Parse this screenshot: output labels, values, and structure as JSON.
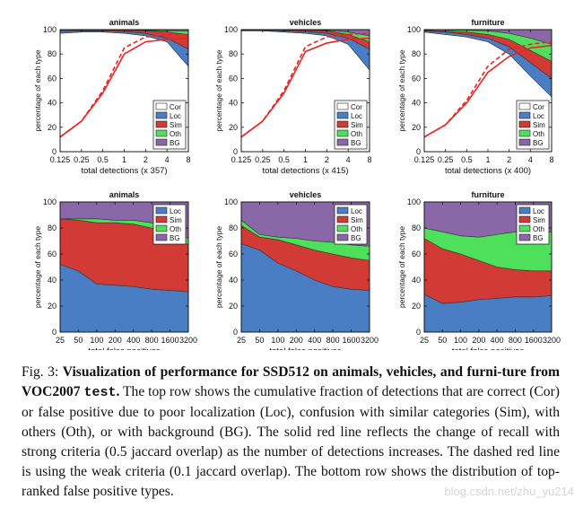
{
  "colors": {
    "Cor": "#ffffff",
    "Loc": "#4a7ec4",
    "Sim": "#d13a35",
    "Oth": "#4ee05a",
    "BG": "#8a68a8",
    "recall": "#ee2222"
  },
  "chart_data": [
    {
      "type": "area",
      "title": "animals",
      "xlabel": "total detections (x 357)",
      "ylabel": "percentage of each type",
      "xticks": [
        "0.125",
        "0.25",
        "0.5",
        "1",
        "2",
        "4",
        "8"
      ],
      "yticks": [
        "0",
        "20",
        "40",
        "60",
        "80",
        "100"
      ],
      "ylim": [
        0,
        100
      ],
      "x_scale": "log2",
      "legend": [
        "Cor",
        "Loc",
        "Sim",
        "Oth",
        "BG"
      ],
      "legend_position": "bottom-right",
      "x": [
        0.125,
        0.25,
        0.5,
        1,
        2,
        4,
        8
      ],
      "series": [
        {
          "name": "Cor",
          "values": [
            97,
            98,
            98,
            97,
            95,
            90,
            70
          ]
        },
        {
          "name": "Loc",
          "values": [
            99,
            99,
            99,
            98.5,
            97,
            93,
            84
          ]
        },
        {
          "name": "Sim",
          "values": [
            100,
            99.6,
            99.5,
            99.4,
            99,
            98,
            96
          ]
        },
        {
          "name": "Oth",
          "values": [
            100,
            100,
            100,
            99.8,
            99.5,
            99,
            99
          ]
        },
        {
          "name": "BG",
          "values": [
            100,
            100,
            100,
            100,
            100,
            100,
            100
          ]
        }
      ],
      "recall_strong": [
        12,
        25,
        48,
        80,
        90,
        92,
        93
      ],
      "recall_weak": [
        12,
        25,
        50,
        85,
        94,
        96,
        96
      ]
    },
    {
      "type": "area",
      "title": "vehicles",
      "xlabel": "total detections (x 415)",
      "ylabel": "percentage of each type",
      "xticks": [
        "0.125",
        "0.25",
        "0.5",
        "1",
        "2",
        "4",
        "8"
      ],
      "yticks": [
        "0",
        "20",
        "40",
        "60",
        "80",
        "100"
      ],
      "ylim": [
        0,
        100
      ],
      "x_scale": "log2",
      "legend": [
        "Cor",
        "Loc",
        "Sim",
        "Oth",
        "BG"
      ],
      "legend_position": "bottom-right",
      "x": [
        0.125,
        0.25,
        0.5,
        1,
        2,
        4,
        8
      ],
      "series": [
        {
          "name": "Cor",
          "values": [
            99,
            99,
            98,
            97,
            95,
            88,
            67
          ]
        },
        {
          "name": "Loc",
          "values": [
            99.5,
            99.5,
            99,
            98.5,
            97,
            93,
            84
          ]
        },
        {
          "name": "Sim",
          "values": [
            100,
            99.8,
            99.6,
            99.4,
            99,
            96,
            90
          ]
        },
        {
          "name": "Oth",
          "values": [
            100,
            100,
            100,
            99.8,
            99.5,
            98,
            95
          ]
        },
        {
          "name": "BG",
          "values": [
            100,
            100,
            100,
            100,
            100,
            100,
            100
          ]
        }
      ],
      "recall_strong": [
        12,
        25,
        48,
        82,
        89,
        92,
        93
      ],
      "recall_weak": [
        12,
        25,
        50,
        86,
        94,
        96,
        97
      ]
    },
    {
      "type": "area",
      "title": "furniture",
      "xlabel": "total detections (x 400)",
      "ylabel": "percentage of each type",
      "xticks": [
        "0.125",
        "0.25",
        "0.5",
        "1",
        "2",
        "4",
        "8"
      ],
      "yticks": [
        "0",
        "20",
        "40",
        "60",
        "80",
        "100"
      ],
      "ylim": [
        0,
        100
      ],
      "x_scale": "log2",
      "legend": [
        "Cor",
        "Loc",
        "Sim",
        "Oth",
        "BG"
      ],
      "legend_position": "bottom-right",
      "x": [
        0.125,
        0.25,
        0.5,
        1,
        2,
        4,
        8
      ],
      "series": [
        {
          "name": "Cor",
          "values": [
            98,
            96,
            94,
            90,
            80,
            62,
            45
          ]
        },
        {
          "name": "Loc",
          "values": [
            99,
            98,
            96,
            93,
            86,
            73,
            60
          ]
        },
        {
          "name": "Sim",
          "values": [
            99.5,
            99,
            98,
            96,
            92,
            83,
            74
          ]
        },
        {
          "name": "Oth",
          "values": [
            100,
            99.8,
            99.5,
            99,
            97,
            93,
            88
          ]
        },
        {
          "name": "BG",
          "values": [
            100,
            100,
            100,
            100,
            100,
            100,
            100
          ]
        }
      ],
      "recall_strong": [
        12,
        22,
        40,
        65,
        78,
        85,
        87
      ],
      "recall_weak": [
        12,
        22,
        42,
        70,
        84,
        88,
        90
      ]
    },
    {
      "type": "area",
      "title": "animals",
      "xlabel": "total false positives",
      "ylabel": "percentage of each type",
      "xticks": [
        "25",
        "50",
        "100",
        "200",
        "400",
        "800",
        "1600",
        "3200"
      ],
      "yticks": [
        "0",
        "20",
        "40",
        "60",
        "80",
        "100"
      ],
      "ylim": [
        0,
        100
      ],
      "x_scale": "log2",
      "legend": [
        "Loc",
        "Sim",
        "Oth",
        "BG"
      ],
      "legend_position": "top-right",
      "x": [
        25,
        50,
        100,
        200,
        400,
        800,
        1600,
        3200
      ],
      "series": [
        {
          "name": "Loc",
          "values": [
            52,
            47,
            37,
            36,
            35,
            33,
            32,
            31
          ]
        },
        {
          "name": "Sim",
          "values": [
            87,
            86,
            84,
            84,
            83,
            80,
            75,
            67
          ]
        },
        {
          "name": "Oth",
          "values": [
            87,
            87,
            87,
            86,
            86,
            84,
            79,
            72
          ]
        },
        {
          "name": "BG",
          "values": [
            100,
            100,
            100,
            100,
            100,
            100,
            100,
            100
          ]
        }
      ]
    },
    {
      "type": "area",
      "title": "vehicles",
      "xlabel": "total false positives",
      "ylabel": "percentage of each type",
      "xticks": [
        "25",
        "50",
        "100",
        "200",
        "400",
        "800",
        "1600",
        "3200"
      ],
      "yticks": [
        "0",
        "20",
        "40",
        "60",
        "80",
        "100"
      ],
      "ylim": [
        0,
        100
      ],
      "x_scale": "log2",
      "legend": [
        "Loc",
        "Sim",
        "Oth",
        "BG"
      ],
      "legend_position": "top-right",
      "x": [
        25,
        50,
        100,
        200,
        400,
        800,
        1600,
        3200
      ],
      "series": [
        {
          "name": "Loc",
          "values": [
            68,
            63,
            53,
            47,
            40,
            35,
            33,
            32
          ]
        },
        {
          "name": "Sim",
          "values": [
            82,
            73,
            71,
            67,
            63,
            60,
            57,
            55
          ]
        },
        {
          "name": "Oth",
          "values": [
            86,
            75,
            73,
            72,
            70,
            69,
            67,
            66
          ]
        },
        {
          "name": "BG",
          "values": [
            100,
            100,
            100,
            100,
            100,
            100,
            100,
            100
          ]
        }
      ]
    },
    {
      "type": "area",
      "title": "furniture",
      "xlabel": "total false positives",
      "ylabel": "percentage of each type",
      "xticks": [
        "25",
        "50",
        "100",
        "200",
        "400",
        "800",
        "1600",
        "3200"
      ],
      "yticks": [
        "0",
        "20",
        "40",
        "60",
        "80",
        "100"
      ],
      "ylim": [
        0,
        100
      ],
      "x_scale": "log2",
      "legend": [
        "Loc",
        "Sim",
        "Oth",
        "BG"
      ],
      "legend_position": "top-right",
      "x": [
        25,
        50,
        100,
        200,
        400,
        800,
        1600,
        3200
      ],
      "series": [
        {
          "name": "Loc",
          "values": [
            29,
            22,
            23,
            25,
            26,
            27,
            27,
            28
          ]
        },
        {
          "name": "Sim",
          "values": [
            72,
            64,
            60,
            55,
            50,
            48,
            47,
            47
          ]
        },
        {
          "name": "Oth",
          "values": [
            80,
            77,
            74,
            73,
            75,
            77,
            77,
            77
          ]
        },
        {
          "name": "BG",
          "values": [
            100,
            100,
            100,
            100,
            100,
            100,
            100,
            100
          ]
        }
      ]
    }
  ],
  "caption": {
    "label": "Fig. 3:",
    "title_part1": "Visualization of performance for SSD512 on animals, vehicles, and furni-ture from VOC2007",
    "title_code": "test",
    "title_end": ".",
    "body": "The top row shows the cumulative fraction of detections that are correct (Cor) or false positive due to poor localization (Loc), confusion with similar categories (Sim), with others (Oth), or with background (BG). The solid red line reflects the change of recall with strong criteria (0.5 jaccard overlap) as the number of detections increases. The dashed red line is using the weak criteria (0.1 jaccard overlap). The bottom row shows the distribution of top-ranked false positive types."
  },
  "watermark": "blog.csdn.net/zhu_yu214"
}
